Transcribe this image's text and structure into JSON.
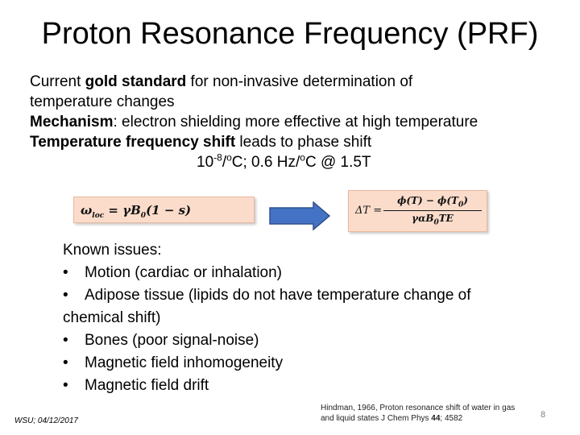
{
  "slide": {
    "title": "Proton Resonance Frequency (PRF)",
    "intro": {
      "line1": {
        "pre": "Current ",
        "bold": "gold standard",
        "post": " for non-invasive determination of"
      },
      "line2": "temperature changes",
      "line3": {
        "bold": "Mechanism",
        "post": ": electron shielding more effective at high temperature"
      },
      "line4": {
        "bold": "Temperature frequency shift",
        "post": " leads to phase shift"
      },
      "line5": {
        "a": "10",
        "a_sup": "-8",
        "b": "/",
        "b_sup": "o",
        "c": "C; 0.6 Hz/",
        "c_sup": "o",
        "d": "C @ 1.5T"
      }
    },
    "equation1": {
      "lhs": "ω",
      "lhs_sub": "loc",
      "rhs": " = γB",
      "rhs_sub": "0",
      "tail": "(1 − s)"
    },
    "equation2": {
      "lhs": "ΔT =",
      "num_a": "ϕ(T) − ϕ(T",
      "num_sub": "0",
      "num_b": ")",
      "den_a": "γαB",
      "den_sub": "0",
      "den_b": "TE"
    },
    "issues": {
      "heading": "Known issues:",
      "bullet": "•",
      "items": [
        "Motion (cardiac or inhalation)",
        "Adipose tissue (lipids do not have temperature change of",
        "Bones (poor signal-noise)",
        "Magnetic field inhomogeneity",
        "Magnetic field drift"
      ],
      "continuation": "chemical shift)"
    },
    "footer_left": "WSU; 04/12/2017",
    "citation": {
      "line1": "Hindman, 1966, Proton resonance shift of water in gas",
      "line2_pre": "and liquid states  J Chem Phys ",
      "line2_bold": "44",
      "line2_post": "; 4582"
    },
    "page_number": "8",
    "colors": {
      "equation_box": "#fbdccb",
      "arrow_fill": "#4472c4",
      "arrow_stroke": "#2f528f"
    }
  }
}
